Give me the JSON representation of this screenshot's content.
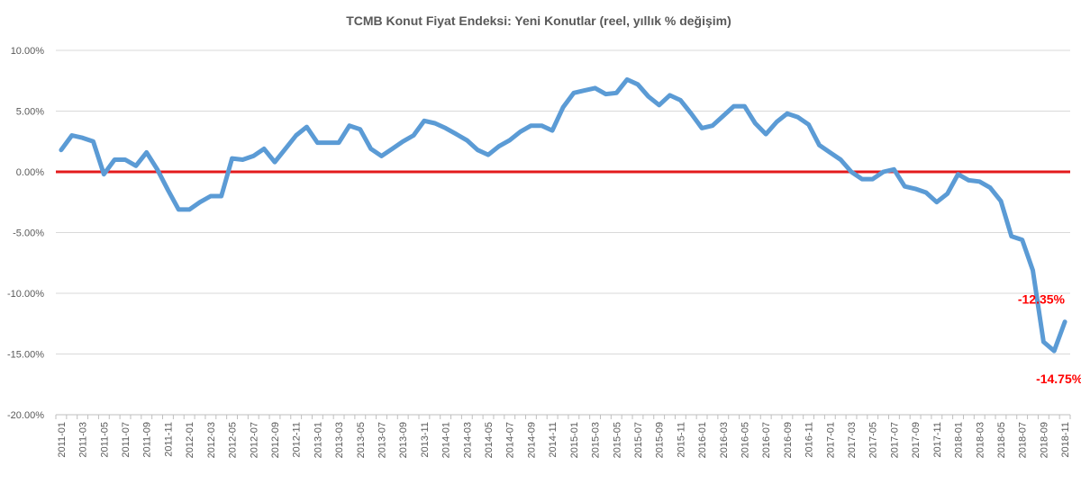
{
  "chart_data": {
    "type": "line",
    "title": "TCMB Konut Fiyat Endeksi: Yeni Konutlar (reel, yıllık % değişim)",
    "xlabel": "",
    "ylabel": "",
    "ylim": [
      -20,
      10
    ],
    "y_ticks": [
      10,
      5,
      0,
      -5,
      -10,
      -15,
      -20
    ],
    "y_tick_labels": [
      "10.00%",
      "5.00%",
      "0.00%",
      "-5.00%",
      "-10.00%",
      "-15.00%",
      "-20.00%"
    ],
    "grid": true,
    "x": [
      "2011-01",
      "2011-02",
      "2011-03",
      "2011-04",
      "2011-05",
      "2011-06",
      "2011-07",
      "2011-08",
      "2011-09",
      "2011-10",
      "2011-11",
      "2011-12",
      "2012-01",
      "2012-02",
      "2012-03",
      "2012-04",
      "2012-05",
      "2012-06",
      "2012-07",
      "2012-08",
      "2012-09",
      "2012-10",
      "2012-11",
      "2012-12",
      "2013-01",
      "2013-02",
      "2013-03",
      "2013-04",
      "2013-05",
      "2013-06",
      "2013-07",
      "2013-08",
      "2013-09",
      "2013-10",
      "2013-11",
      "2013-12",
      "2014-01",
      "2014-02",
      "2014-03",
      "2014-04",
      "2014-05",
      "2014-06",
      "2014-07",
      "2014-08",
      "2014-09",
      "2014-10",
      "2014-11",
      "2014-12",
      "2015-01",
      "2015-02",
      "2015-03",
      "2015-04",
      "2015-05",
      "2015-06",
      "2015-07",
      "2015-08",
      "2015-09",
      "2015-10",
      "2015-11",
      "2015-12",
      "2016-01",
      "2016-02",
      "2016-03",
      "2016-04",
      "2016-05",
      "2016-06",
      "2016-07",
      "2016-08",
      "2016-09",
      "2016-10",
      "2016-11",
      "2016-12",
      "2017-01",
      "2017-02",
      "2017-03",
      "2017-04",
      "2017-05",
      "2017-06",
      "2017-07",
      "2017-08",
      "2017-09",
      "2017-10",
      "2017-11",
      "2017-12",
      "2018-01",
      "2018-02",
      "2018-03",
      "2018-04",
      "2018-05",
      "2018-06",
      "2018-07",
      "2018-08",
      "2018-09",
      "2018-10",
      "2018-11"
    ],
    "x_tick_labels": [
      "2011-01",
      "2011-03",
      "2011-05",
      "2011-07",
      "2011-09",
      "2011-11",
      "2012-01",
      "2012-03",
      "2012-05",
      "2012-07",
      "2012-09",
      "2012-11",
      "2013-01",
      "2013-03",
      "2013-05",
      "2013-07",
      "2013-09",
      "2013-11",
      "2014-01",
      "2014-03",
      "2014-05",
      "2014-07",
      "2014-09",
      "2014-11",
      "2015-01",
      "2015-03",
      "2015-05",
      "2015-07",
      "2015-09",
      "2015-11",
      "2016-01",
      "2016-03",
      "2016-05",
      "2016-07",
      "2016-09",
      "2016-11",
      "2017-01",
      "2017-03",
      "2017-05",
      "2017-07",
      "2017-09",
      "2017-11",
      "2018-01",
      "2018-03",
      "2018-05",
      "2018-07",
      "2018-09",
      "2018-11"
    ],
    "series": [
      {
        "name": "",
        "color": "#5b9bd5",
        "values": [
          1.8,
          3.0,
          2.8,
          2.5,
          -0.2,
          1.0,
          1.0,
          0.5,
          1.6,
          0.2,
          -1.5,
          -3.1,
          -3.1,
          -2.5,
          -2.0,
          -2.0,
          1.1,
          1.0,
          1.3,
          1.9,
          0.8,
          1.9,
          3.0,
          3.7,
          2.4,
          2.4,
          2.4,
          3.8,
          3.5,
          1.9,
          1.3,
          1.9,
          2.5,
          3.0,
          4.2,
          4.0,
          3.6,
          3.1,
          2.6,
          1.8,
          1.4,
          2.1,
          2.6,
          3.3,
          3.8,
          3.8,
          3.4,
          5.3,
          6.5,
          6.7,
          6.9,
          6.4,
          6.5,
          7.6,
          7.2,
          6.2,
          5.5,
          6.3,
          5.9,
          4.8,
          3.6,
          3.8,
          4.6,
          5.4,
          5.4,
          4.0,
          3.1,
          4.1,
          4.8,
          4.5,
          3.9,
          2.2,
          1.6,
          1.0,
          0.0,
          -0.6,
          -0.6,
          0.0,
          0.2,
          -1.2,
          -1.4,
          -1.7,
          -2.5,
          -1.8,
          -0.2,
          -0.7,
          -0.8,
          -1.3,
          -2.4,
          -5.3,
          -5.6,
          -8.1,
          -14.0,
          -14.75,
          -12.35
        ]
      }
    ],
    "reference_line": {
      "y": 0,
      "color": "#e31a1c"
    },
    "annotations": [
      {
        "text": "-12.35%",
        "x": "2018-11",
        "y": -12.35,
        "color": "#ff0000"
      },
      {
        "text": "-14.75%",
        "x": "2018-10",
        "y": -14.75,
        "color": "#ff0000"
      }
    ]
  }
}
